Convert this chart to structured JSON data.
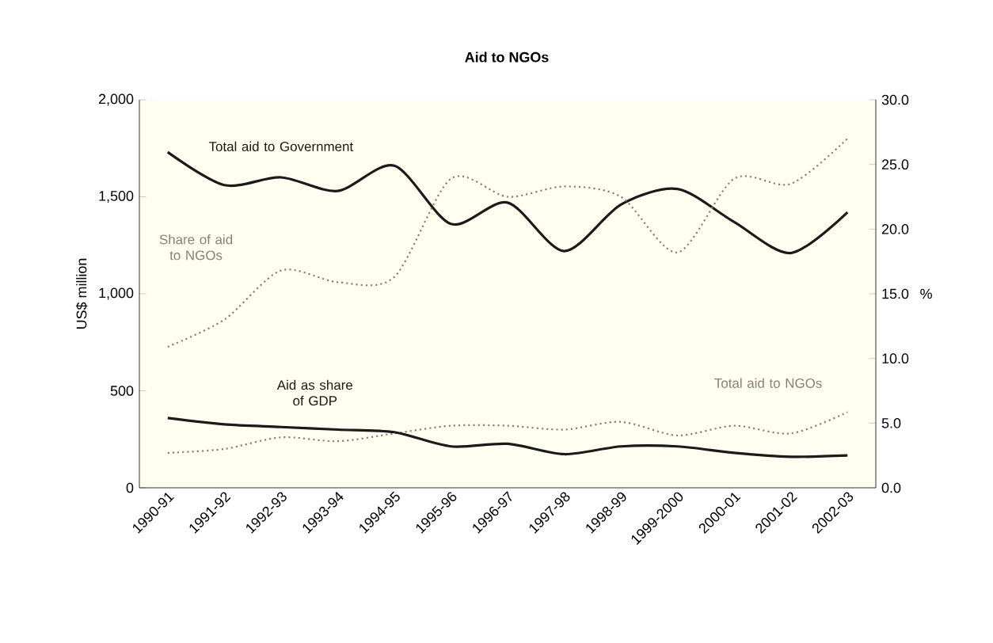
{
  "chart_data": {
    "type": "line",
    "title": "Aid to NGOs",
    "ylabel": "US$ million",
    "y2label": "%",
    "categories": [
      "1990-91",
      "1991-92",
      "1992-93",
      "1993-94",
      "1994-95",
      "1995-96",
      "1996-97",
      "1997-98",
      "1998-99",
      "1999-2000",
      "2000-01",
      "2001-02",
      "2002-03"
    ],
    "series": [
      {
        "name": "Total aid to Government",
        "color": "#1a1a1a",
        "line_style": "solid",
        "values": [
          1730,
          1560,
          1600,
          1530,
          1660,
          1360,
          1470,
          1220,
          1460,
          1540,
          1370,
          1210,
          1420
        ]
      },
      {
        "name": "Total aid to NGOs",
        "color": "#8c8070",
        "line_style": "dotted",
        "values": [
          180,
          200,
          260,
          240,
          280,
          320,
          320,
          300,
          340,
          270,
          320,
          280,
          390
        ]
      },
      {
        "name": "Share of aid to NGOs",
        "color": "#8c8070",
        "line_style": "dotted",
        "axis": "y2",
        "values": [
          10.9,
          13.0,
          16.8,
          15.9,
          16.3,
          23.9,
          22.5,
          23.3,
          22.5,
          18.2,
          23.9,
          23.5,
          27.0
        ]
      },
      {
        "name": "Aid as share of GDP",
        "color": "#1a1a1a",
        "line_style": "solid",
        "axis": "y2",
        "values": [
          5.4,
          4.9,
          4.7,
          4.5,
          4.3,
          3.2,
          3.4,
          2.6,
          3.2,
          3.2,
          2.7,
          2.4,
          2.5
        ]
      }
    ],
    "ylim": [
      0,
      2000
    ],
    "yticks": [
      0,
      500,
      {
        "value": 1000,
        "label": "1,000"
      },
      {
        "value": 1500,
        "label": "1,500"
      },
      {
        "value": 2000,
        "label": "2,000"
      }
    ],
    "y2lim": [
      0,
      30
    ],
    "y2ticks": [
      {
        "value": 0,
        "label": "0.0"
      },
      {
        "value": 5,
        "label": "5.0"
      },
      {
        "value": 10,
        "label": "10.0"
      },
      {
        "value": 15,
        "label": "15.0"
      },
      {
        "value": 20,
        "label": "20.0"
      },
      {
        "value": 25,
        "label": "25.0"
      },
      {
        "value": 30,
        "label": "30.0"
      }
    ],
    "marker": "none",
    "grid": false
  }
}
